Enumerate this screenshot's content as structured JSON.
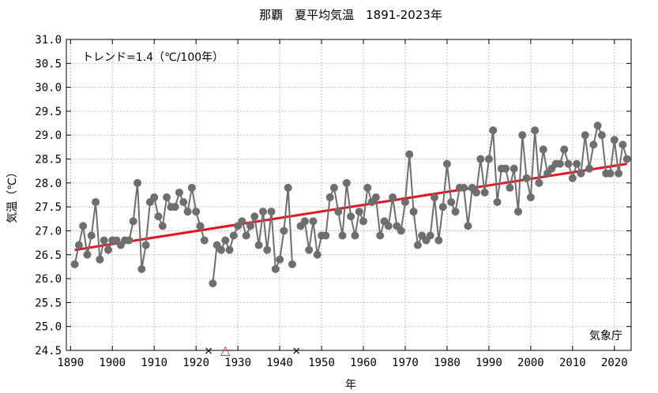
{
  "chart_data": {
    "type": "line",
    "title": "那覇　夏平均気温　1891-2023年",
    "xlabel": "年",
    "ylabel": "気温（℃）",
    "annotation": "トレンド=1.4（℃/100年）",
    "source": "気象庁",
    "xlim": [
      1889,
      2024
    ],
    "ylim": [
      24.5,
      31.0
    ],
    "x_ticks": [
      1890,
      1900,
      1910,
      1920,
      1930,
      1940,
      1950,
      1960,
      1970,
      1980,
      1990,
      2000,
      2010,
      2020
    ],
    "y_ticks": [
      "24.5",
      "25.0",
      "25.5",
      "26.0",
      "26.5",
      "27.0",
      "27.5",
      "28.0",
      "28.5",
      "29.0",
      "29.5",
      "30.0",
      "30.5",
      "31.0"
    ],
    "grid": true,
    "series": [
      {
        "name": "",
        "color": "#6e6e6e",
        "segments": [
          {
            "x": [
              1891,
              1892,
              1893,
              1894,
              1895,
              1896,
              1897,
              1898,
              1899,
              1900,
              1901,
              1902,
              1903,
              1904,
              1905,
              1906,
              1907,
              1908,
              1909,
              1910,
              1911,
              1912,
              1913,
              1914,
              1915,
              1916,
              1917,
              1918,
              1919,
              1920,
              1921,
              1922
            ],
            "y": [
              26.3,
              26.7,
              27.1,
              26.5,
              26.9,
              27.6,
              26.4,
              26.8,
              26.6,
              26.8,
              26.8,
              26.7,
              26.8,
              26.8,
              27.2,
              28.0,
              26.2,
              26.7,
              27.6,
              27.7,
              27.3,
              27.1,
              27.7,
              27.5,
              27.5,
              27.8,
              27.6,
              27.4,
              27.9,
              27.4,
              27.1,
              26.8
            ]
          },
          {
            "x": [
              1924,
              1925,
              1926,
              1927,
              1928,
              1929,
              1930,
              1931,
              1932,
              1933,
              1934,
              1935,
              1936,
              1937,
              1938,
              1939,
              1940,
              1941,
              1942,
              1943
            ],
            "y": [
              25.9,
              26.7,
              26.6,
              26.8,
              26.6,
              26.9,
              27.1,
              27.2,
              26.9,
              27.1,
              27.3,
              26.7,
              27.4,
              26.6,
              27.4,
              26.2,
              26.4,
              27.0,
              27.9,
              26.3
            ]
          },
          {
            "x": [
              1945,
              1946,
              1947,
              1948,
              1949,
              1950,
              1951,
              1952,
              1953,
              1954,
              1955,
              1956,
              1957,
              1958,
              1959,
              1960,
              1961,
              1962,
              1963,
              1964,
              1965,
              1966,
              1967,
              1968,
              1969,
              1970,
              1971,
              1972,
              1973,
              1974,
              1975,
              1976,
              1977,
              1978,
              1979,
              1980,
              1981,
              1982,
              1983,
              1984,
              1985,
              1986,
              1987,
              1988,
              1989,
              1990,
              1991,
              1992,
              1993,
              1994,
              1995,
              1996,
              1997,
              1998,
              1999,
              2000,
              2001,
              2002,
              2003,
              2004,
              2005,
              2006,
              2007,
              2008,
              2009,
              2010,
              2011,
              2012,
              2013,
              2014,
              2015,
              2016,
              2017,
              2018,
              2019,
              2020,
              2021,
              2022,
              2023
            ],
            "y": [
              27.1,
              27.2,
              26.6,
              27.2,
              26.5,
              26.9,
              26.9,
              27.7,
              27.9,
              27.4,
              26.9,
              28.0,
              27.3,
              26.9,
              27.4,
              27.2,
              27.9,
              27.6,
              27.7,
              26.9,
              27.2,
              27.1,
              27.7,
              27.1,
              27.0,
              27.6,
              28.6,
              27.4,
              26.7,
              26.9,
              26.8,
              26.9,
              27.7,
              26.8,
              27.5,
              28.4,
              27.6,
              27.4,
              27.9,
              27.9,
              27.1,
              27.9,
              27.8,
              28.5,
              27.8,
              28.5,
              29.1,
              27.6,
              28.3,
              28.3,
              27.9,
              28.3,
              27.4,
              29.0,
              28.1,
              27.7,
              29.1,
              28.0,
              28.7,
              28.2,
              28.3,
              28.4,
              28.4,
              28.7,
              28.4,
              28.1,
              28.4,
              28.2,
              29.0,
              28.3,
              28.8,
              29.2,
              29.0,
              28.2,
              28.2,
              28.9,
              28.2,
              28.8,
              28.5
            ]
          }
        ]
      }
    ],
    "trend": {
      "x": [
        1891,
        2023
      ],
      "y": [
        26.6,
        28.4
      ],
      "color": "#e8141c"
    },
    "missing_markers": [
      {
        "x": 1923,
        "symbol": "×",
        "color": "#000000"
      },
      {
        "x": 1944,
        "symbol": "×",
        "color": "#000000"
      }
    ],
    "relocation_marker": {
      "x": 1927,
      "symbol": "△",
      "color": "#e8141c"
    }
  }
}
